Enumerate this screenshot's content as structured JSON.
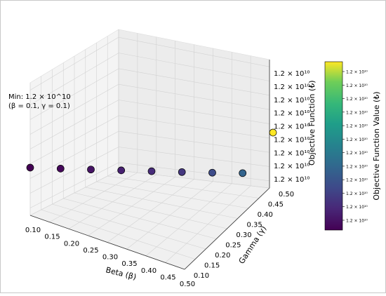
{
  "chart_data": {
    "type": "scatter",
    "projection": "3d",
    "annotation": {
      "line1": "Min: 1.2 × 10^10",
      "line2": "(β = 0.1, γ = 0.1)"
    },
    "axes": {
      "x": {
        "label": "Beta (β)",
        "ticks": [
          "0.10",
          "0.15",
          "0.20",
          "0.25",
          "0.30",
          "0.35",
          "0.40",
          "0.45",
          "0.50"
        ],
        "range": [
          0.1,
          0.5
        ]
      },
      "y": {
        "label": "Gamma (γ)",
        "ticks": [
          "0.10",
          "0.15",
          "0.20",
          "0.25",
          "0.30",
          "0.35",
          "0.40",
          "0.45",
          "0.50"
        ],
        "range": [
          0.1,
          0.5
        ]
      },
      "z": {
        "label": "Objective Function (₺)",
        "ticks": [
          "1.2 × 10¹⁰",
          "1.2 × 10¹⁰",
          "1.2 × 10¹⁰",
          "1.2 × 10¹⁰",
          "1.2 × 10¹⁰",
          "1.2 × 10¹⁰",
          "1.2 × 10¹⁰",
          "1.2 × 10¹⁰",
          "1.2 × 10¹⁰"
        ]
      }
    },
    "points": [
      {
        "beta": 0.1,
        "gamma": 0.1,
        "color_level": 0.0
      },
      {
        "beta": 0.15,
        "gamma": 0.15,
        "color_level": 0.02
      },
      {
        "beta": 0.2,
        "gamma": 0.2,
        "color_level": 0.06
      },
      {
        "beta": 0.25,
        "gamma": 0.25,
        "color_level": 0.1
      },
      {
        "beta": 0.3,
        "gamma": 0.3,
        "color_level": 0.14
      },
      {
        "beta": 0.35,
        "gamma": 0.35,
        "color_level": 0.18
      },
      {
        "beta": 0.4,
        "gamma": 0.4,
        "color_level": 0.26
      },
      {
        "beta": 0.45,
        "gamma": 0.45,
        "color_level": 0.36
      },
      {
        "beta": 0.5,
        "gamma": 0.5,
        "color_level": 1.0
      }
    ],
    "colorbar": {
      "label": "Objective Function Value (₺)",
      "ticks": [
        "1.2 × 10¹⁰",
        "1.2 × 10¹⁰",
        "1.2 × 10¹⁰",
        "1.2 × 10¹⁰",
        "1.2 × 10¹⁰",
        "1.2 × 10¹⁰",
        "1.2 × 10¹⁰",
        "1.2 × 10¹⁰",
        "1.2 × 10¹⁰",
        "1.2 × 10¹⁰",
        "1.2 × 10¹⁰",
        "1.2 × 10¹⁰"
      ],
      "colormap": "viridis"
    },
    "grid": true
  }
}
